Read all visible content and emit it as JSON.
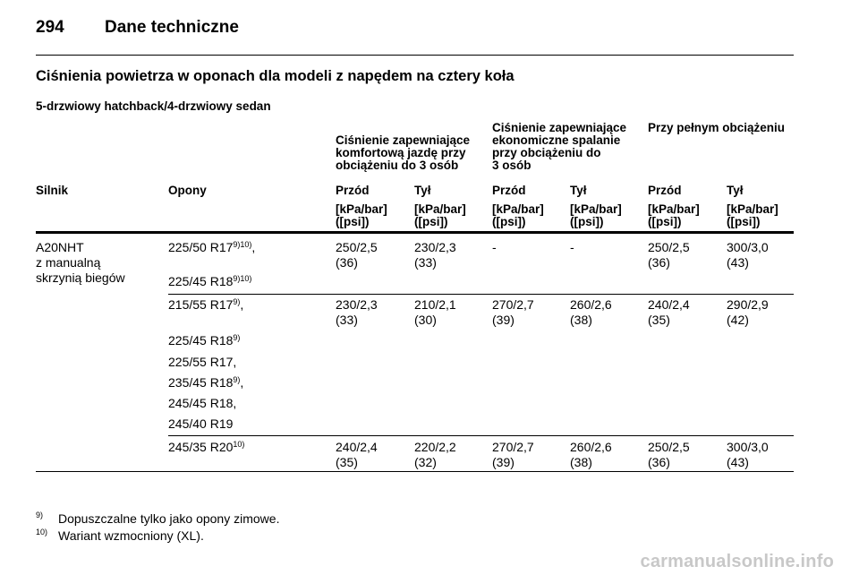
{
  "header": {
    "page_number": "294",
    "title": "Dane techniczne"
  },
  "section_title": "Ciśnienia powietrza w oponach dla modeli z napędem na cztery koła",
  "variant_label": "5-drzwiowy hatchback/4-drzwiowy sedan",
  "table": {
    "group_headers": {
      "comfort": [
        "Ciśnienie zapewniające",
        "komfortową jazdę przy",
        "obciążeniu do 3 osób"
      ],
      "eco": [
        "Ciśnienie zapewniające",
        "ekonomiczne spalanie",
        "przy obciążeniu do",
        "3 osób"
      ],
      "full": [
        "Przy pełnym obciążeniu"
      ]
    },
    "columns": [
      "Silnik",
      "Opony",
      "Przód",
      "Tył",
      "Przód",
      "Tył",
      "Przód",
      "Tył"
    ],
    "unit_line1": "[kPa/bar]",
    "unit_line2": "([psi])",
    "engine": [
      "A20NHT",
      "z manualną",
      "skrzynią biegów"
    ],
    "rows": [
      {
        "tyres": [
          {
            "size": "225/50 R17",
            "sup": "9)10)",
            "suffix": ","
          },
          {
            "size": "225/45 R18",
            "sup": "9)10)",
            "suffix": ""
          }
        ],
        "values": [
          [
            "250/2,5",
            "(36)"
          ],
          [
            "230/2,3",
            "(33)"
          ],
          [
            "-",
            ""
          ],
          [
            "-",
            ""
          ],
          [
            "250/2,5",
            "(36)"
          ],
          [
            "300/3,0",
            "(43)"
          ]
        ]
      },
      {
        "tyres": [
          {
            "size": "215/55 R17",
            "sup": "9)",
            "suffix": ","
          },
          {
            "size": "225/45 R18",
            "sup": "9)",
            "suffix": ""
          },
          {
            "size": "225/55 R17,",
            "sup": "",
            "suffix": ""
          },
          {
            "size": "235/45 R18",
            "sup": "9)",
            "suffix": ","
          },
          {
            "size": "245/45 R18,",
            "sup": "",
            "suffix": ""
          },
          {
            "size": "245/40 R19",
            "sup": "",
            "suffix": ""
          }
        ],
        "values": [
          [
            "230/2,3",
            "(33)"
          ],
          [
            "210/2,1",
            "(30)"
          ],
          [
            "270/2,7",
            "(39)"
          ],
          [
            "260/2,6",
            "(38)"
          ],
          [
            "240/2,4",
            "(35)"
          ],
          [
            "290/2,9",
            "(42)"
          ]
        ]
      },
      {
        "tyres": [
          {
            "size": "245/35 R20",
            "sup": "10)",
            "suffix": ""
          }
        ],
        "values": [
          [
            "240/2,4",
            "(35)"
          ],
          [
            "220/2,2",
            "(32)"
          ],
          [
            "270/2,7",
            "(39)"
          ],
          [
            "260/2,6",
            "(38)"
          ],
          [
            "250/2,5",
            "(36)"
          ],
          [
            "300/3,0",
            "(43)"
          ]
        ]
      }
    ]
  },
  "footnotes": [
    {
      "mark": "9)",
      "text": "Dopuszczalne tylko jako opony zimowe."
    },
    {
      "mark": "10)",
      "text": "Wariant wzmocniony (XL)."
    }
  ],
  "watermark": "carmanualsonline.info"
}
